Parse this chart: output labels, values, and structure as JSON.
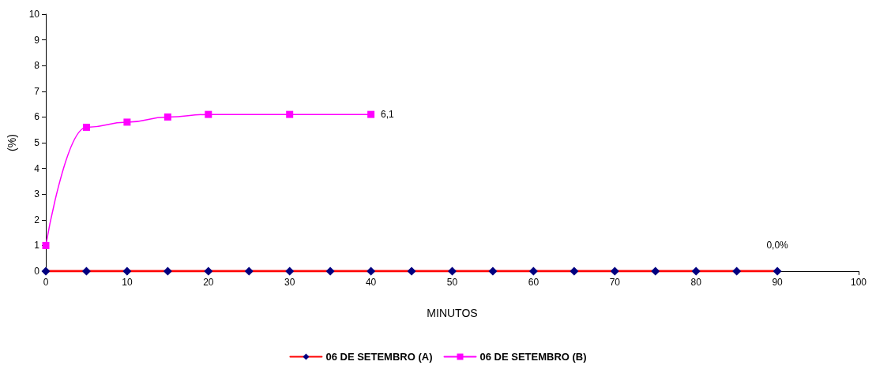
{
  "chart_data": {
    "type": "line",
    "xlabel": "MINUTOS",
    "ylabel": "(%)",
    "xlim": [
      0,
      100
    ],
    "xticks": [
      0,
      10,
      20,
      30,
      40,
      50,
      60,
      70,
      80,
      90,
      100
    ],
    "ylim": [
      0,
      10
    ],
    "yticks": [
      0,
      1,
      2,
      3,
      4,
      5,
      6,
      7,
      8,
      9,
      10
    ],
    "grid": false,
    "legend": "bottom",
    "line_style": "solid",
    "series": [
      {
        "name": "06 DE SETEMBRO (A)",
        "color": "#ff0000",
        "marker": "diamond",
        "colors": [
          "#000080",
          "#000080",
          "#000080",
          "#000080",
          "#000080",
          "#000080",
          "#000080",
          "#000080",
          "#000080",
          "#000080",
          "#000080",
          "#000080",
          "#000080",
          "#000080",
          "#000080",
          "#000080",
          "#000080",
          "#000080",
          "#000080"
        ],
        "x": [
          0,
          5,
          10,
          15,
          20,
          25,
          30,
          35,
          40,
          45,
          50,
          55,
          60,
          65,
          70,
          75,
          80,
          85,
          90
        ],
        "values": [
          0,
          0,
          0,
          0,
          0,
          0,
          0,
          0,
          0,
          0,
          0,
          0,
          0,
          0,
          0,
          0,
          0,
          0,
          0
        ],
        "value_labels": [
          null,
          null,
          null,
          null,
          null,
          null,
          null,
          null,
          null,
          null,
          null,
          null,
          null,
          null,
          null,
          null,
          null,
          null,
          "0,0%"
        ]
      },
      {
        "name": "06 DE SETEMBRO (B)",
        "color": "#ff00ff",
        "marker": "square",
        "x": [
          0,
          5,
          10,
          15,
          20,
          30,
          40
        ],
        "values": [
          1,
          5.6,
          5.8,
          6.0,
          6.1,
          6.1,
          6.1
        ],
        "value_labels": [
          null,
          null,
          null,
          null,
          null,
          null,
          "6,1"
        ]
      }
    ]
  }
}
